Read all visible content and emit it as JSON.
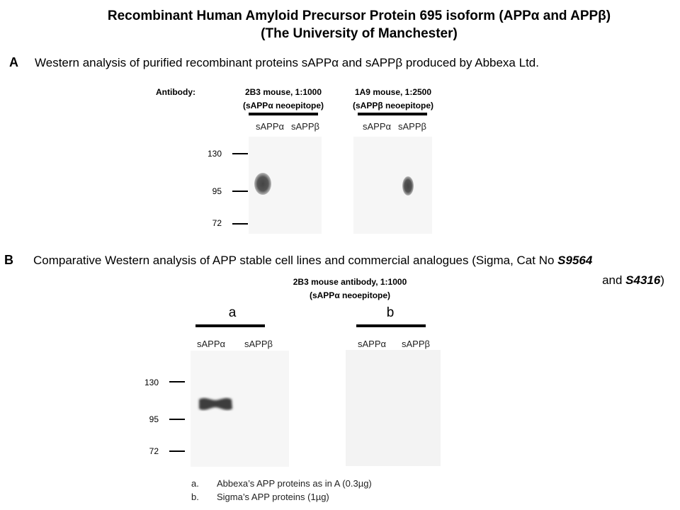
{
  "title": {
    "line1": "Recombinant Human Amyloid Precursor Protein 695 isoform (APPα and APPβ)",
    "line2": "(The University of Manchester)"
  },
  "section_a": {
    "letter": "A",
    "description": "Western analysis of purified recombinant proteins sAPPα and sAPPβ produced by Abbexa Ltd.",
    "antibody_label": "Antibody:",
    "blots": [
      {
        "antibody_line1": "2B3 mouse, 1:1000",
        "antibody_line2": "(sAPPα neoepitope)",
        "lanes": [
          "sAPPα",
          "sAPPβ"
        ],
        "band_lane": "sAPPα"
      },
      {
        "antibody_line1": "1A9 mouse, 1:2500",
        "antibody_line2": "(sAPPβ neoepitope)",
        "lanes": [
          "sAPPα",
          "sAPPβ"
        ],
        "band_lane": "sAPPβ"
      }
    ],
    "markers": [
      "130",
      "95",
      "72"
    ]
  },
  "section_b": {
    "letter": "B",
    "description_line1": "Comparative Western analysis of APP stable cell lines and commercial analogues (Sigma, Cat No ",
    "cat1": "S9564",
    "description_line2_pre": "and ",
    "cat2": "S4316",
    "description_line2_post": ")",
    "antibody_line1": "2B3 mouse antibody, 1:1000",
    "antibody_line2": "(sAPPα neoepitope)",
    "blots": [
      {
        "label": "a",
        "lanes": [
          "sAPPα",
          "sAPPβ"
        ],
        "band_lane": "sAPPα"
      },
      {
        "label": "b",
        "lanes": [
          "sAPPα",
          "sAPPβ"
        ],
        "band_lane": null
      }
    ],
    "markers": [
      "130",
      "95",
      "72"
    ],
    "footnotes": [
      {
        "key": "a.",
        "text": "Abbexa’s APP proteins as in A (0.3µg)"
      },
      {
        "key": "b.",
        "text": "Sigma’s APP proteins (1µg)"
      }
    ]
  }
}
